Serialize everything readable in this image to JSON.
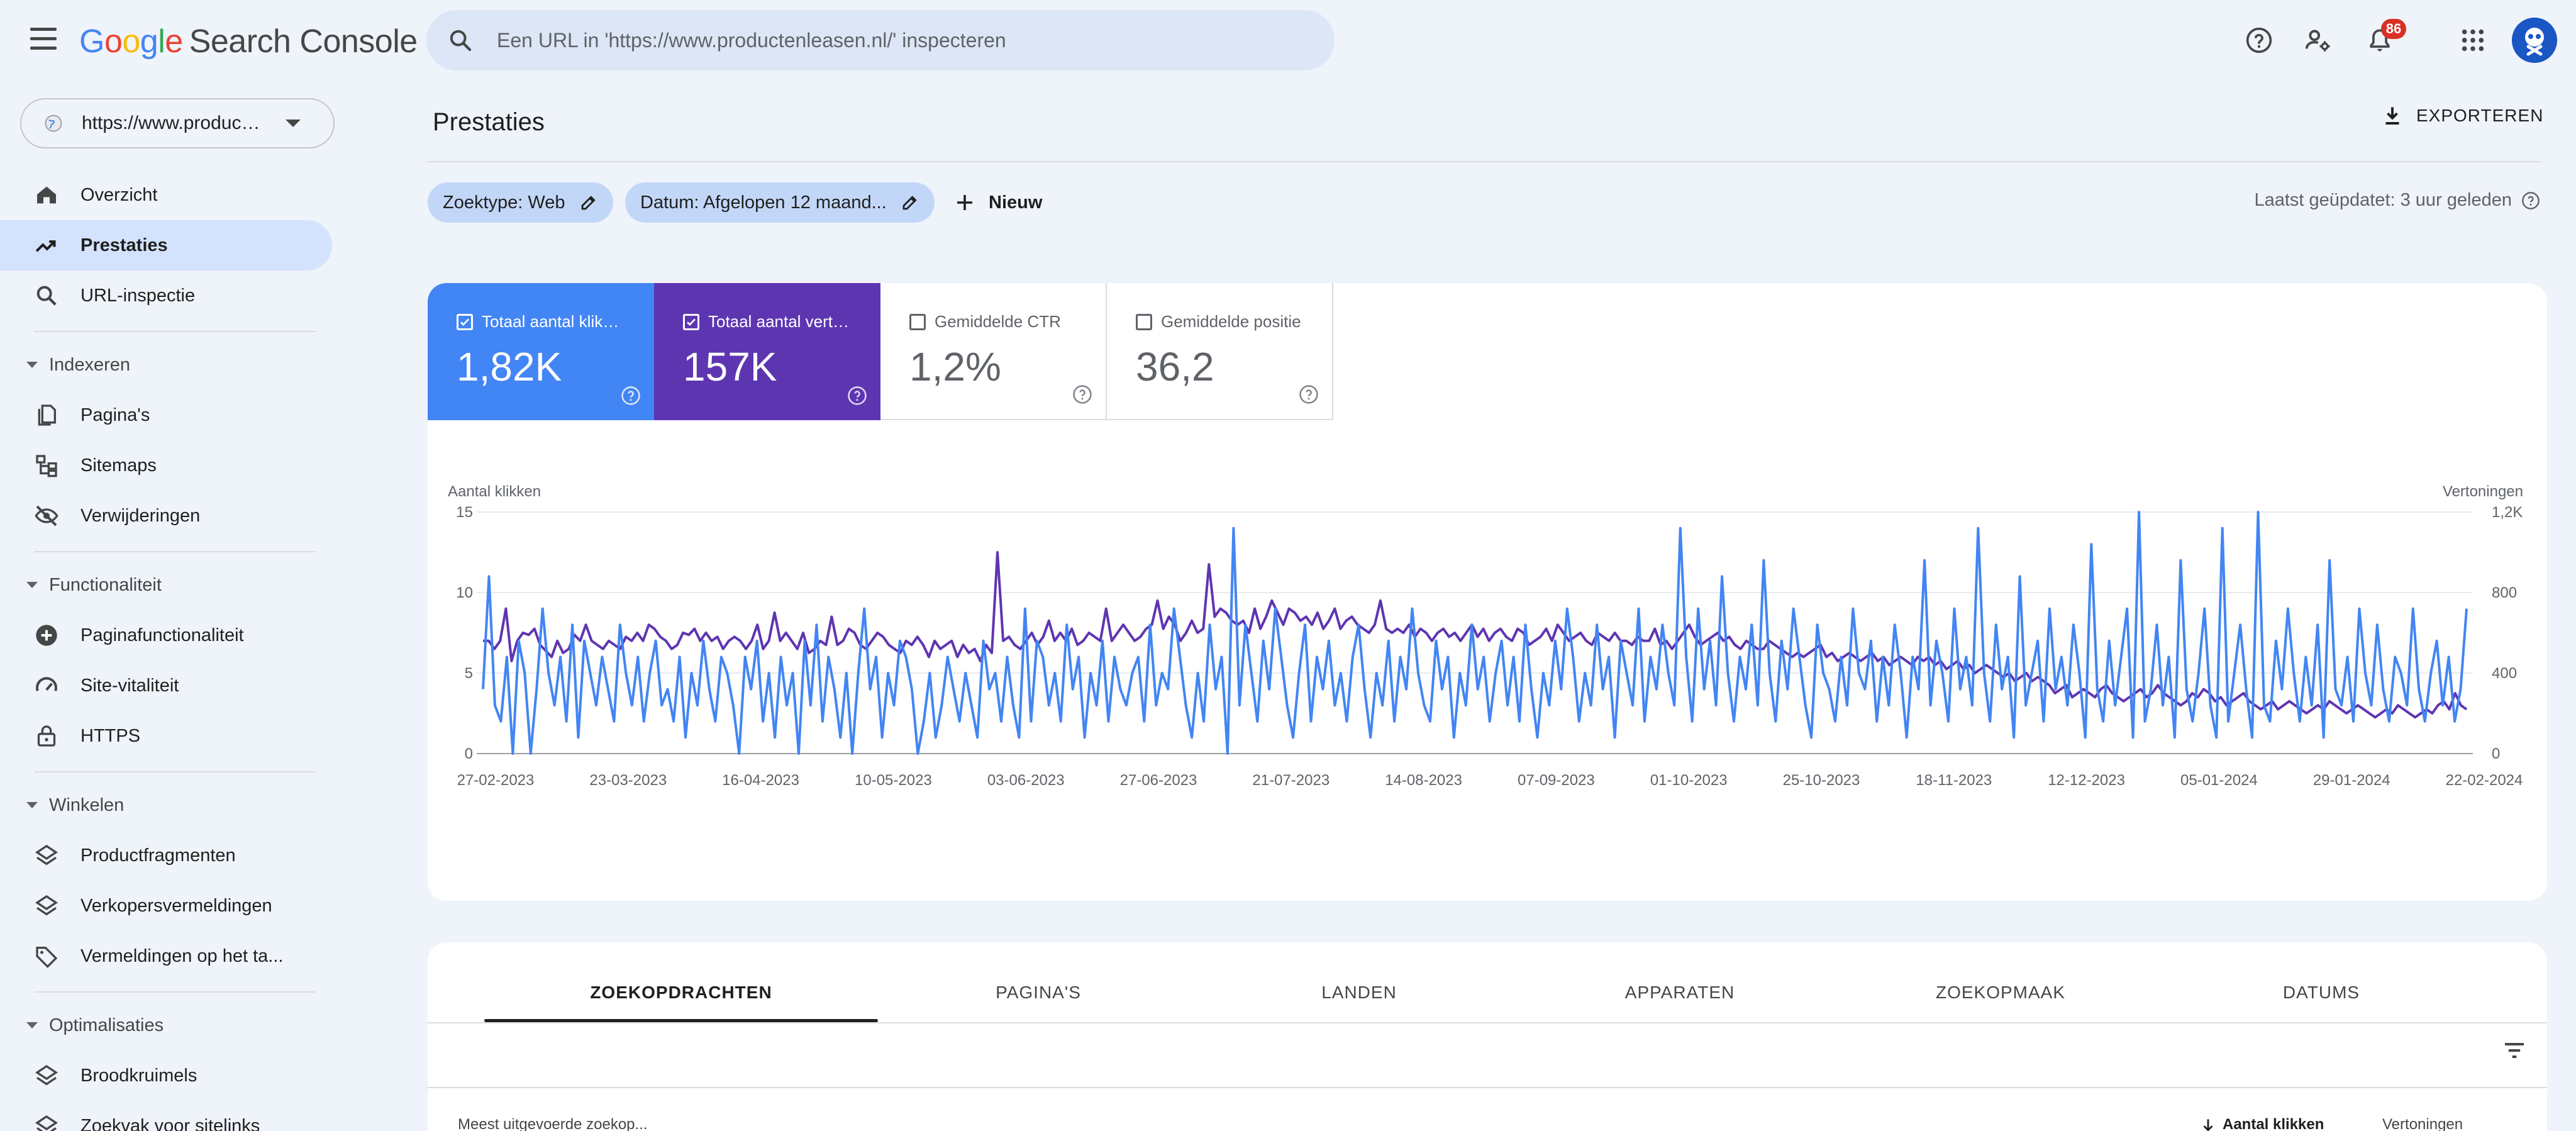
{
  "app": {
    "logo_letters": [
      "G",
      "o",
      "o",
      "g",
      "l",
      "e"
    ],
    "product": "Search Console"
  },
  "search": {
    "placeholder": "Een URL in 'https://www.productenleasen.nl/' inspecteren"
  },
  "notifications": {
    "count": "86"
  },
  "property": {
    "label": "https://www.productenleasen.nl/"
  },
  "sidebar": {
    "items": [
      {
        "label": "Overzicht"
      },
      {
        "label": "Prestaties"
      },
      {
        "label": "URL-inspectie"
      }
    ],
    "sections": [
      {
        "label": "Indexeren",
        "items": [
          {
            "label": "Pagina's"
          },
          {
            "label": "Sitemaps"
          },
          {
            "label": "Verwijderingen"
          }
        ]
      },
      {
        "label": "Functionaliteit",
        "items": [
          {
            "label": "Paginafunctionaliteit"
          },
          {
            "label": "Site-vitaliteit"
          },
          {
            "label": "HTTPS"
          }
        ]
      },
      {
        "label": "Winkelen",
        "items": [
          {
            "label": "Productfragmenten"
          },
          {
            "label": "Verkopersvermeldingen"
          },
          {
            "label": "Vermeldingen op het ta..."
          }
        ]
      },
      {
        "label": "Optimalisaties",
        "items": [
          {
            "label": "Broodkruimels"
          },
          {
            "label": "Zoekvak voor sitelinks"
          }
        ]
      }
    ]
  },
  "header": {
    "title": "Prestaties",
    "export_label": "EXPORTEREN"
  },
  "filters": {
    "chips": [
      {
        "label": "Zoektype: Web"
      },
      {
        "label": "Datum: Afgelopen 12 maand..."
      }
    ],
    "new_label": "Nieuw",
    "updated": "Laatst geüpdatet: 3 uur geleden"
  },
  "metrics": [
    {
      "label": "Totaal aantal klikken",
      "value": "1,82K",
      "selected": true,
      "color": "#4285f4"
    },
    {
      "label": "Totaal aantal vertoningen",
      "value": "157K",
      "selected": true,
      "color": "#5e35b1"
    },
    {
      "label": "Gemiddelde CTR",
      "value": "1,2%",
      "selected": false,
      "color": "#ffffff"
    },
    {
      "label": "Gemiddelde positie",
      "value": "36,2",
      "selected": false,
      "color": "#ffffff"
    }
  ],
  "tabs": [
    {
      "label": "ZOEKOPDRACHTEN",
      "active": true
    },
    {
      "label": "PAGINA'S",
      "active": false
    },
    {
      "label": "LANDEN",
      "active": false
    },
    {
      "label": "APPARATEN",
      "active": false
    },
    {
      "label": "ZOEKOPMAAK",
      "active": false
    },
    {
      "label": "DATUMS",
      "active": false
    }
  ],
  "table": {
    "col_query": "Meest uitgevoerde zoekop...",
    "col_clicks": "Aantal klikken",
    "col_impressions": "Vertoningen"
  },
  "chart_data": {
    "type": "line",
    "ylabel": "Aantal klikken",
    "y2label": "Vertoningen",
    "ylim": [
      0,
      15
    ],
    "y2lim": [
      0,
      1200
    ],
    "yticks": [
      "0",
      "5",
      "10",
      "15"
    ],
    "y2ticks": [
      "0",
      "400",
      "800",
      "1,2K"
    ],
    "grid": true,
    "xticks": [
      "27-02-2023",
      "23-03-2023",
      "16-04-2023",
      "10-05-2023",
      "03-06-2023",
      "27-06-2023",
      "21-07-2023",
      "14-08-2023",
      "07-09-2023",
      "01-10-2023",
      "25-10-2023",
      "18-11-2023",
      "12-12-2023",
      "05-01-2024",
      "29-01-2024",
      "22-02-2024"
    ],
    "series": [
      {
        "axis": "right",
        "color": "#5e35b1",
        "values": [
          560,
          560,
          520,
          560,
          720,
          460,
          560,
          600,
          590,
          620,
          540,
          510,
          480,
          560,
          500,
          520,
          590,
          560,
          640,
          560,
          540,
          520,
          560,
          540,
          520,
          580,
          560,
          600,
          560,
          640,
          620,
          580,
          560,
          520,
          540,
          600,
          590,
          620,
          560,
          600,
          560,
          580,
          520,
          560,
          580,
          560,
          520,
          560,
          640,
          520,
          560,
          700,
          560,
          600,
          560,
          520,
          600,
          500,
          520,
          560,
          540,
          680,
          540,
          560,
          620,
          600,
          540,
          520,
          560,
          600,
          580,
          540,
          520,
          500,
          560,
          540,
          580,
          540,
          480,
          560,
          520,
          540,
          560,
          480,
          540,
          500,
          520,
          460,
          540,
          500,
          1000,
          560,
          580,
          540,
          520,
          560,
          600,
          540,
          580,
          660,
          560,
          600,
          560,
          620,
          540,
          560,
          600,
          580,
          560,
          720,
          560,
          600,
          640,
          600,
          560,
          580,
          620,
          640,
          760,
          620,
          680,
          640,
          560,
          600,
          660,
          600,
          620,
          940,
          680,
          720,
          700,
          660,
          640,
          660,
          600,
          720,
          620,
          680,
          760,
          700,
          640,
          720,
          700,
          660,
          680,
          640,
          700,
          620,
          660,
          720,
          620,
          660,
          680,
          640,
          620,
          600,
          640,
          760,
          620,
          600,
          620,
          600,
          640,
          580,
          620,
          600,
          560,
          600,
          620,
          580,
          600,
          560,
          600,
          640,
          580,
          620,
          560,
          600,
          620,
          580,
          560,
          620,
          600,
          540,
          560,
          580,
          620,
          560,
          640,
          600,
          560,
          580,
          600,
          560,
          540,
          600,
          580,
          560,
          600,
          560,
          560,
          540,
          580,
          560,
          560,
          620,
          540,
          560,
          520,
          560,
          600,
          640,
          580,
          540,
          560,
          580,
          600,
          560,
          580,
          540,
          520,
          560,
          540,
          520,
          520,
          560,
          540,
          520,
          500,
          480,
          500,
          480,
          500,
          520,
          540,
          480,
          500,
          460,
          480,
          500,
          480,
          460,
          480,
          500,
          460,
          480,
          440,
          460,
          480,
          460,
          440,
          480,
          460,
          480,
          440,
          460,
          420,
          440,
          460,
          420,
          440,
          400,
          420,
          440,
          420,
          400,
          380,
          400,
          360,
          380,
          400,
          360,
          380,
          360,
          340,
          300,
          320,
          340,
          280,
          300,
          320,
          300,
          280,
          320,
          340,
          300,
          280,
          260,
          280,
          300,
          320,
          280,
          300,
          340,
          300,
          280,
          260,
          240,
          260,
          300,
          280,
          320,
          300,
          260,
          280,
          240,
          260,
          280,
          300,
          260,
          240,
          220,
          240,
          260,
          220,
          240,
          260,
          240,
          220,
          200,
          220,
          240,
          220,
          260,
          240,
          220,
          200,
          220,
          240,
          220,
          200,
          180,
          200,
          220,
          200,
          240,
          220,
          200,
          180,
          200,
          220,
          200,
          240,
          260,
          220,
          300,
          240,
          220
        ]
      },
      {
        "axis": "left",
        "color": "#4285f4",
        "values": [
          4,
          11,
          3,
          2,
          6,
          0,
          7,
          5,
          0,
          4,
          9,
          5,
          3,
          6,
          2,
          8,
          1,
          7,
          5,
          3,
          6,
          4,
          2,
          8,
          5,
          3,
          6,
          2,
          5,
          7,
          3,
          4,
          2,
          6,
          1,
          5,
          3,
          7,
          4,
          2,
          6,
          5,
          3,
          0,
          6,
          4,
          7,
          2,
          5,
          1,
          6,
          3,
          5,
          0,
          7,
          3,
          8,
          2,
          6,
          4,
          1,
          5,
          0,
          5,
          9,
          4,
          6,
          1,
          5,
          3,
          7,
          6,
          4,
          0,
          2,
          5,
          1,
          3,
          6,
          4,
          2,
          5,
          3,
          1,
          7,
          4,
          5,
          2,
          6,
          3,
          1,
          9,
          2,
          7,
          6,
          3,
          5,
          2,
          8,
          4,
          6,
          1,
          5,
          3,
          7,
          2,
          6,
          4,
          3,
          5,
          6,
          2,
          8,
          3,
          5,
          4,
          9,
          6,
          3,
          1,
          5,
          2,
          8,
          4,
          6,
          0,
          14,
          3,
          8,
          5,
          2,
          7,
          4,
          9,
          6,
          3,
          1,
          5,
          8,
          2,
          6,
          4,
          7,
          3,
          5,
          2,
          6,
          8,
          4,
          1,
          5,
          3,
          7,
          2,
          6,
          4,
          9,
          5,
          3,
          2,
          7,
          4,
          6,
          1,
          5,
          3,
          8,
          4,
          6,
          2,
          5,
          7,
          3,
          6,
          2,
          8,
          4,
          1,
          5,
          3,
          7,
          4,
          9,
          6,
          2,
          5,
          3,
          8,
          4,
          6,
          1,
          7,
          5,
          3,
          9,
          2,
          6,
          4,
          8,
          5,
          3,
          14,
          6,
          2,
          9,
          4,
          7,
          3,
          11,
          5,
          2,
          6,
          4,
          8,
          3,
          12,
          5,
          2,
          7,
          4,
          9,
          6,
          3,
          1,
          8,
          5,
          4,
          2,
          6,
          3,
          9,
          5,
          4,
          7,
          2,
          6,
          3,
          8,
          5,
          1,
          6,
          4,
          12,
          3,
          7,
          5,
          2,
          9,
          4,
          6,
          3,
          14,
          5,
          2,
          8,
          4,
          6,
          1,
          11,
          3,
          5,
          7,
          2,
          9,
          4,
          6,
          3,
          8,
          5,
          1,
          13,
          4,
          2,
          7,
          3,
          6,
          9,
          1,
          15,
          2,
          4,
          8,
          3,
          6,
          1,
          12,
          4,
          2,
          5,
          9,
          3,
          1,
          14,
          2,
          5,
          8,
          4,
          1,
          15,
          3,
          2,
          7,
          4,
          9,
          5,
          2,
          6,
          3,
          8,
          1,
          12,
          4,
          3,
          6,
          2,
          9,
          5,
          3,
          8,
          4,
          2,
          6,
          5,
          3,
          9,
          4,
          2,
          5,
          7,
          3,
          6,
          2,
          4,
          9
        ]
      }
    ]
  },
  "colors": {
    "accent": "#0b57d0",
    "clicks": "#4285f4",
    "impressions": "#5e35b1"
  }
}
